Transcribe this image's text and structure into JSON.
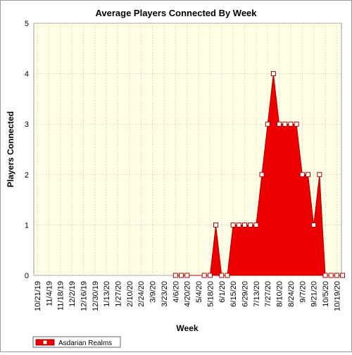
{
  "chart_data": {
    "type": "area",
    "title": "Average Players Connected By Week",
    "xlabel": "Week",
    "ylabel": "Players Connected",
    "ylim": [
      0,
      5
    ],
    "yticks": [
      0,
      1,
      2,
      3,
      4,
      5
    ],
    "grid": true,
    "legend_position": "bottom-left",
    "colors": {
      "series_fill": "#ee0000",
      "plot_bg": "#ffffe8",
      "marker_fill": "#ffffff",
      "marker_stroke": "#aa0000"
    },
    "x_tick_labels": [
      "10/21/19",
      "11/4/19",
      "11/18/19",
      "12/2/19",
      "12/16/19",
      "12/30/19",
      "1/13/20",
      "1/27/20",
      "2/10/20",
      "2/24/20",
      "3/9/20",
      "3/23/20",
      "4/6/20",
      "4/20/20",
      "5/4/20",
      "5/18/20",
      "6/1/20",
      "6/15/20",
      "6/29/20",
      "7/13/20",
      "7/27/20",
      "8/10/20",
      "8/24/20",
      "9/7/20",
      "9/21/20",
      "10/5/20",
      "10/19/20"
    ],
    "series": [
      {
        "name": "Asdarian Realms",
        "x": [
          "4/6/20",
          "4/13/20",
          "4/20/20",
          "5/11/20",
          "5/18/20",
          "5/25/20",
          "6/1/20",
          "6/8/20",
          "6/15/20",
          "6/22/20",
          "6/29/20",
          "7/6/20",
          "7/13/20",
          "7/20/20",
          "7/27/20",
          "8/3/20",
          "8/10/20",
          "8/17/20",
          "8/24/20",
          "8/31/20",
          "9/7/20",
          "9/14/20",
          "9/21/20",
          "9/28/20",
          "10/5/20",
          "10/12/20",
          "10/19/20",
          "10/26/20"
        ],
        "values": [
          0,
          0,
          0,
          0,
          0,
          1,
          0,
          0,
          1,
          1,
          1,
          1,
          1,
          2,
          3,
          4,
          3,
          3,
          3,
          3,
          2,
          2,
          1,
          2,
          0,
          0,
          0,
          0
        ]
      }
    ]
  }
}
